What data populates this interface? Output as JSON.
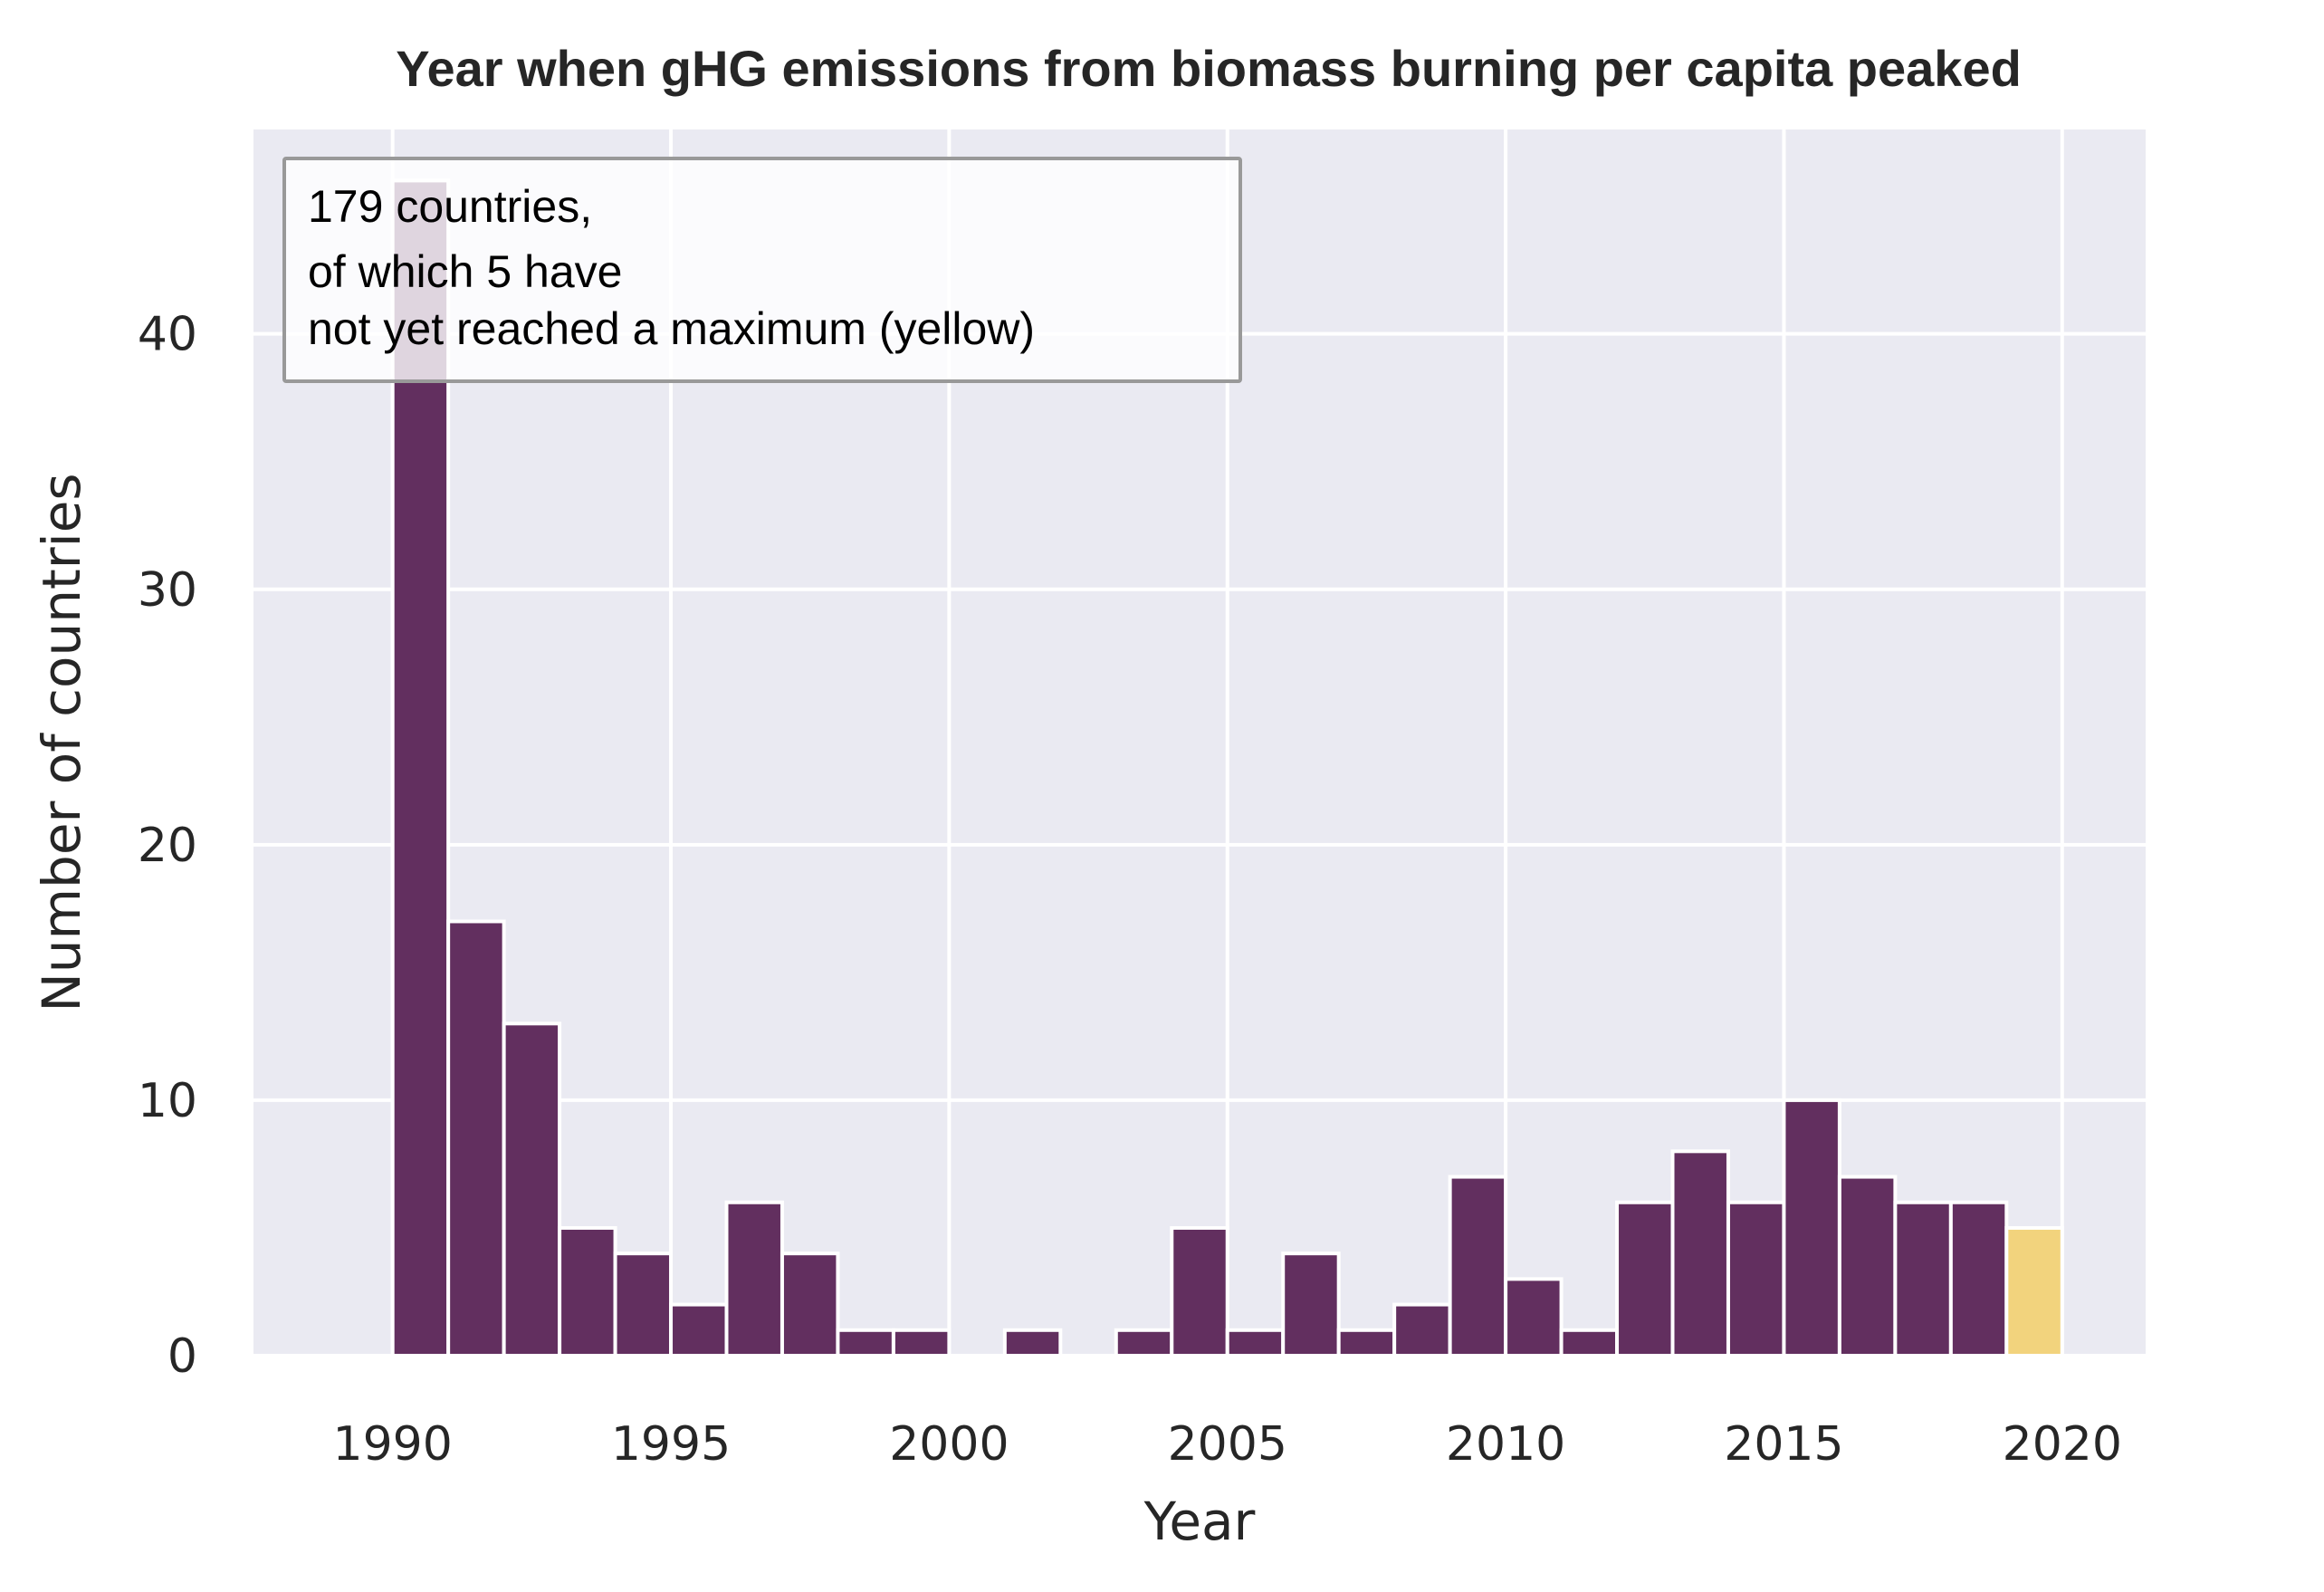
{
  "chart_data": {
    "type": "bar",
    "title": "Year when gHG emissions from biomass burning per capita peaked",
    "xlabel": "Year",
    "ylabel": "Number of countries",
    "xlim": [
      1987.5,
      2021.5
    ],
    "ylim": [
      0,
      48
    ],
    "xticks": [
      1990,
      1995,
      2000,
      2005,
      2010,
      2015,
      2020
    ],
    "yticks": [
      0,
      10,
      20,
      30,
      40
    ],
    "grid": true,
    "background": "#EAEAF2",
    "gridColor": "#FFFFFF",
    "bins": [
      {
        "year": 1990,
        "count": 46,
        "color": "#622F5F"
      },
      {
        "year": 1991,
        "count": 17,
        "color": "#622F5F"
      },
      {
        "year": 1992,
        "count": 13,
        "color": "#622F5F"
      },
      {
        "year": 1993,
        "count": 5,
        "color": "#622F5F"
      },
      {
        "year": 1994,
        "count": 4,
        "color": "#622F5F"
      },
      {
        "year": 1995,
        "count": 2,
        "color": "#622F5F"
      },
      {
        "year": 1996,
        "count": 6,
        "color": "#622F5F"
      },
      {
        "year": 1997,
        "count": 4,
        "color": "#622F5F"
      },
      {
        "year": 1998,
        "count": 1,
        "color": "#622F5F"
      },
      {
        "year": 1999,
        "count": 1,
        "color": "#622F5F"
      },
      {
        "year": 2000,
        "count": 0,
        "color": "#622F5F"
      },
      {
        "year": 2001,
        "count": 1,
        "color": "#622F5F"
      },
      {
        "year": 2002,
        "count": 0,
        "color": "#622F5F"
      },
      {
        "year": 2003,
        "count": 1,
        "color": "#622F5F"
      },
      {
        "year": 2004,
        "count": 5,
        "color": "#622F5F"
      },
      {
        "year": 2005,
        "count": 1,
        "color": "#622F5F"
      },
      {
        "year": 2006,
        "count": 4,
        "color": "#622F5F"
      },
      {
        "year": 2007,
        "count": 1,
        "color": "#622F5F"
      },
      {
        "year": 2008,
        "count": 2,
        "color": "#622F5F"
      },
      {
        "year": 2009,
        "count": 7,
        "color": "#622F5F"
      },
      {
        "year": 2010,
        "count": 3,
        "color": "#622F5F"
      },
      {
        "year": 2011,
        "count": 1,
        "color": "#622F5F"
      },
      {
        "year": 2012,
        "count": 6,
        "color": "#622F5F"
      },
      {
        "year": 2013,
        "count": 8,
        "color": "#622F5F"
      },
      {
        "year": 2014,
        "count": 6,
        "color": "#622F5F"
      },
      {
        "year": 2015,
        "count": 10,
        "color": "#622F5F"
      },
      {
        "year": 2016,
        "count": 7,
        "color": "#622F5F"
      },
      {
        "year": 2017,
        "count": 6,
        "color": "#622F5F"
      },
      {
        "year": 2018,
        "count": 6,
        "color": "#622F5F"
      },
      {
        "year": 2019,
        "count": 5,
        "color": "#F2D37D"
      }
    ],
    "annotation": {
      "lines": [
        "179 countries,",
        "of which 5 have",
        "not yet reached a maximum (yellow)"
      ],
      "placement": "top-left"
    }
  }
}
